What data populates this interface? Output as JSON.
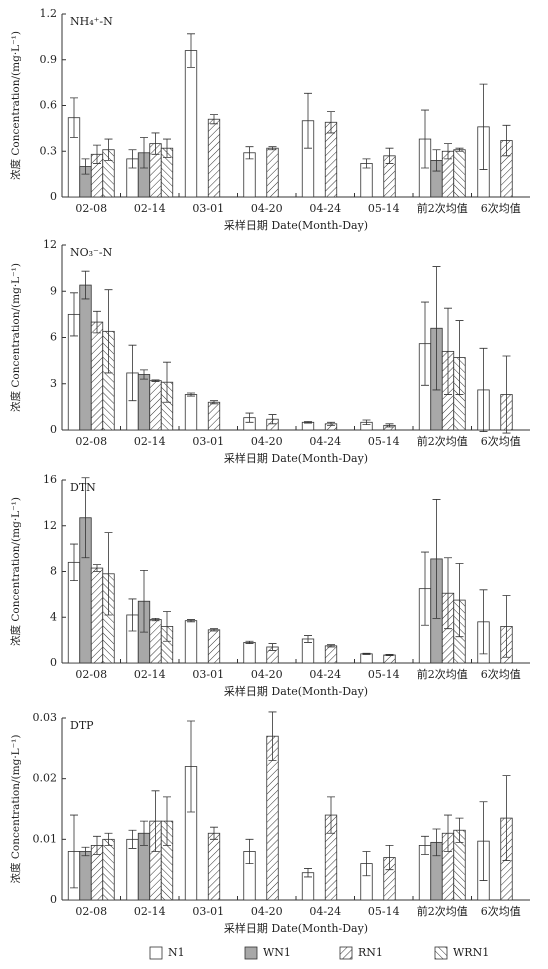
{
  "chart_data": [
    {
      "type": "bar",
      "title": "NH₄⁺-N",
      "y_label": "浓度 Concentration/(mg·L⁻¹)",
      "x_label": "采样日期 Date(Month-Day)",
      "categories": [
        "02-08",
        "02-14",
        "03-01",
        "04-20",
        "04-24",
        "05-14",
        "前2次均值",
        "6次均值"
      ],
      "ylim": [
        0,
        1.2
      ],
      "yticks": [
        0,
        0.3,
        0.6,
        0.9,
        1.2
      ],
      "series": [
        {
          "name": "N1",
          "color": "#ffffff",
          "values": [
            0.52,
            0.25,
            0.96,
            0.29,
            0.5,
            0.22,
            0.38,
            0.46
          ],
          "errors": [
            0.13,
            0.06,
            0.11,
            0.04,
            0.18,
            0.03,
            0.19,
            0.28
          ]
        },
        {
          "name": "WN1",
          "color": "#a8a8a8",
          "values": [
            0.2,
            0.29,
            null,
            null,
            null,
            null,
            0.24,
            null
          ],
          "errors": [
            0.05,
            0.1,
            null,
            null,
            null,
            null,
            0.07,
            null
          ]
        },
        {
          "name": "RN1",
          "color": "#ffffff",
          "hatch": "forward",
          "values": [
            0.28,
            0.35,
            0.51,
            0.32,
            0.49,
            0.27,
            0.3,
            0.37
          ],
          "errors": [
            0.06,
            0.07,
            0.03,
            0.01,
            0.07,
            0.05,
            0.05,
            0.1
          ]
        },
        {
          "name": "WRN1",
          "color": "#ffffff",
          "hatch": "backward",
          "values": [
            0.31,
            0.32,
            null,
            null,
            null,
            null,
            0.31,
            null
          ],
          "errors": [
            0.07,
            0.06,
            null,
            null,
            null,
            null,
            0.01,
            null
          ]
        }
      ]
    },
    {
      "type": "bar",
      "title": "NO₃⁻-N",
      "y_label": "浓度 Concentration/(mg·L⁻¹)",
      "x_label": "采样日期 Date(Month-Day)",
      "categories": [
        "02-08",
        "02-14",
        "03-01",
        "04-20",
        "04-24",
        "05-14",
        "前2次均值",
        "6次均值"
      ],
      "ylim": [
        0,
        12
      ],
      "yticks": [
        0,
        3,
        6,
        9,
        12
      ],
      "series": [
        {
          "name": "N1",
          "color": "#ffffff",
          "values": [
            7.5,
            3.7,
            2.3,
            0.8,
            0.5,
            0.5,
            5.6,
            2.6
          ],
          "errors": [
            1.4,
            1.8,
            0.1,
            0.3,
            0.05,
            0.15,
            2.7,
            2.7
          ]
        },
        {
          "name": "WN1",
          "color": "#a8a8a8",
          "values": [
            9.4,
            3.6,
            null,
            null,
            null,
            null,
            6.6,
            null
          ],
          "errors": [
            0.9,
            0.3,
            null,
            null,
            null,
            null,
            4.0,
            null
          ]
        },
        {
          "name": "RN1",
          "color": "#ffffff",
          "hatch": "forward",
          "values": [
            7.0,
            3.2,
            1.8,
            0.7,
            0.4,
            0.3,
            5.1,
            2.3
          ],
          "errors": [
            0.7,
            0.05,
            0.1,
            0.3,
            0.1,
            0.1,
            2.8,
            2.5
          ]
        },
        {
          "name": "WRN1",
          "color": "#ffffff",
          "hatch": "backward",
          "values": [
            6.4,
            3.1,
            null,
            null,
            null,
            null,
            4.7,
            null
          ],
          "errors": [
            2.7,
            1.3,
            null,
            null,
            null,
            null,
            2.4,
            null
          ]
        }
      ]
    },
    {
      "type": "bar",
      "title": "DTN",
      "y_label": "浓度 Concentration/(mg·L⁻¹)",
      "x_label": "采样日期 Date(Month-Day)",
      "categories": [
        "02-08",
        "02-14",
        "03-01",
        "04-20",
        "04-24",
        "05-14",
        "前2次均值",
        "6次均值"
      ],
      "ylim": [
        0,
        16
      ],
      "yticks": [
        0,
        4,
        8,
        12,
        16
      ],
      "series": [
        {
          "name": "N1",
          "color": "#ffffff",
          "values": [
            8.8,
            4.2,
            3.7,
            1.8,
            2.1,
            0.8,
            6.5,
            3.6
          ],
          "errors": [
            1.6,
            1.4,
            0.1,
            0.1,
            0.3,
            0.05,
            3.2,
            2.8
          ]
        },
        {
          "name": "WN1",
          "color": "#a8a8a8",
          "values": [
            12.7,
            5.4,
            null,
            null,
            null,
            null,
            9.1,
            null
          ],
          "errors": [
            3.5,
            2.7,
            null,
            null,
            null,
            null,
            5.2,
            null
          ]
        },
        {
          "name": "RN1",
          "color": "#ffffff",
          "hatch": "forward",
          "values": [
            8.3,
            3.8,
            2.9,
            1.4,
            1.5,
            0.7,
            6.1,
            3.2
          ],
          "errors": [
            0.3,
            0.1,
            0.1,
            0.3,
            0.1,
            0.05,
            3.1,
            2.7
          ]
        },
        {
          "name": "WRN1",
          "color": "#ffffff",
          "hatch": "backward",
          "values": [
            7.8,
            3.2,
            null,
            null,
            null,
            null,
            5.5,
            null
          ],
          "errors": [
            3.6,
            1.3,
            null,
            null,
            null,
            null,
            3.2,
            null
          ]
        }
      ]
    },
    {
      "type": "bar",
      "title": "DTP",
      "y_label": "浓度 Concentration/(mg·L⁻¹)",
      "x_label": "采样日期 Date(Month-Day)",
      "categories": [
        "02-08",
        "02-14",
        "03-01",
        "04-20",
        "04-24",
        "05-14",
        "前2次均值",
        "6次均值"
      ],
      "ylim": [
        0,
        0.03
      ],
      "yticks": [
        0,
        0.01,
        0.02,
        0.03
      ],
      "series": [
        {
          "name": "N1",
          "color": "#ffffff",
          "values": [
            0.008,
            0.01,
            0.022,
            0.008,
            0.0045,
            0.006,
            0.009,
            0.0097
          ],
          "errors": [
            0.006,
            0.0015,
            0.0075,
            0.002,
            0.0007,
            0.002,
            0.0015,
            0.0065
          ]
        },
        {
          "name": "WN1",
          "color": "#a8a8a8",
          "values": [
            0.008,
            0.011,
            null,
            null,
            null,
            null,
            0.0095,
            null
          ],
          "errors": [
            0.0007,
            0.002,
            null,
            null,
            null,
            null,
            0.0022,
            null
          ]
        },
        {
          "name": "RN1",
          "color": "#ffffff",
          "hatch": "forward",
          "values": [
            0.009,
            0.013,
            0.011,
            0.027,
            0.014,
            0.007,
            0.011,
            0.0135
          ],
          "errors": [
            0.0015,
            0.005,
            0.001,
            0.004,
            0.003,
            0.002,
            0.003,
            0.007
          ]
        },
        {
          "name": "WRN1",
          "color": "#ffffff",
          "hatch": "backward",
          "values": [
            0.01,
            0.013,
            null,
            null,
            null,
            null,
            0.0115,
            null
          ],
          "errors": [
            0.001,
            0.004,
            null,
            null,
            null,
            null,
            0.002,
            null
          ]
        }
      ]
    }
  ]
}
